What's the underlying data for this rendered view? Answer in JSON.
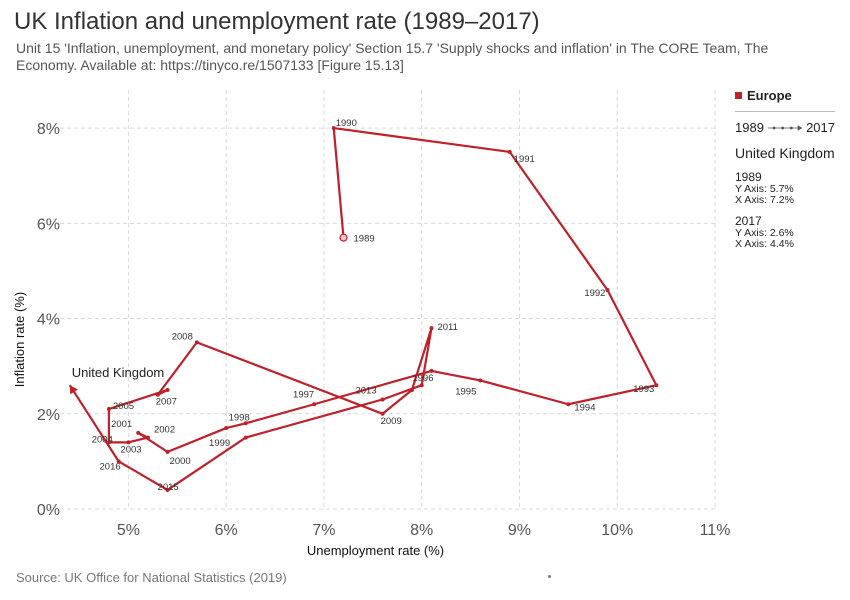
{
  "title": "UK Inflation and unemployment rate (1989–2017)",
  "subtitle": "Unit 15 'Inflation, unemployment, and monetary policy' Section 15.7 'Supply shocks and inflation' in The CORE Team, The Economy. Available at: https://tinyco.re/1507133 [Figure 15.13]",
  "source": "Source: UK Office for National Statistics (2019)",
  "colors": {
    "series": "#c0202a",
    "grid": "#d9d9d9",
    "axis_text": "#555555"
  },
  "legend": {
    "group": "Europe",
    "range_start": "1989",
    "range_end": "2017",
    "country": "United Kingdom",
    "first": {
      "year": "1989",
      "y_text": "Y Axis: 5.7%",
      "x_text": "X Axis: 7.2%"
    },
    "last": {
      "year": "2017",
      "y_text": "Y Axis: 2.6%",
      "x_text": "X Axis: 4.4%"
    }
  },
  "chart_data": {
    "type": "line",
    "xlabel": "Unemployment rate (%)",
    "ylabel": "Inflation rate (%)",
    "xlim": [
      4.3,
      11
    ],
    "ylim": [
      0,
      8.8
    ],
    "x_ticks": [
      "5%",
      "6%",
      "7%",
      "8%",
      "9%",
      "10%",
      "11%"
    ],
    "y_ticks": [
      "0%",
      "2%",
      "4%",
      "6%",
      "8%"
    ],
    "grid": true,
    "legend_position": "right",
    "series": [
      {
        "name": "United Kingdom",
        "points": [
          {
            "year": "1989",
            "x": 7.2,
            "y": 5.7
          },
          {
            "year": "1990",
            "x": 7.1,
            "y": 8.0
          },
          {
            "year": "1991",
            "x": 8.9,
            "y": 7.5
          },
          {
            "year": "1992",
            "x": 9.9,
            "y": 4.6
          },
          {
            "year": "1993",
            "x": 10.4,
            "y": 2.6
          },
          {
            "year": "1994",
            "x": 9.5,
            "y": 2.2
          },
          {
            "year": "1995",
            "x": 8.6,
            "y": 2.7
          },
          {
            "year": "1996",
            "x": 8.1,
            "y": 2.9
          },
          {
            "year": "1997",
            "x": 6.9,
            "y": 2.2
          },
          {
            "year": "1998",
            "x": 6.2,
            "y": 1.8
          },
          {
            "year": "1999",
            "x": 6.0,
            "y": 1.7
          },
          {
            "year": "2000",
            "x": 5.4,
            "y": 1.2
          },
          {
            "year": "2001",
            "x": 5.1,
            "y": 1.6
          },
          {
            "year": "2002",
            "x": 5.2,
            "y": 1.5
          },
          {
            "year": "2003",
            "x": 5.0,
            "y": 1.4
          },
          {
            "year": "2004",
            "x": 4.8,
            "y": 1.4
          },
          {
            "year": "2005",
            "x": 4.8,
            "y": 2.1
          },
          {
            "year": "2006",
            "x": 5.4,
            "y": 2.5
          },
          {
            "year": "2007",
            "x": 5.3,
            "y": 2.4
          },
          {
            "year": "2008",
            "x": 5.7,
            "y": 3.5
          },
          {
            "year": "2009",
            "x": 7.6,
            "y": 2.0
          },
          {
            "year": "2010",
            "x": 7.9,
            "y": 2.5
          },
          {
            "year": "2011",
            "x": 8.1,
            "y": 3.8
          },
          {
            "year": "2012",
            "x": 8.0,
            "y": 2.6
          },
          {
            "year": "2013",
            "x": 7.6,
            "y": 2.3
          },
          {
            "year": "2014",
            "x": 6.2,
            "y": 1.5
          },
          {
            "year": "2015",
            "x": 5.4,
            "y": 0.4
          },
          {
            "year": "2016",
            "x": 4.9,
            "y": 1.0
          },
          {
            "year": "2017",
            "x": 4.4,
            "y": 2.6
          }
        ],
        "labeled_years": [
          "1989",
          "1990",
          "1991",
          "1992",
          "1993",
          "1994",
          "1995",
          "1996",
          "1997",
          "1998",
          "1999",
          "2000",
          "2001",
          "2002",
          "2003",
          "2004",
          "2005",
          "2007",
          "2008",
          "2009",
          "2011",
          "2013",
          "2015",
          "2016"
        ],
        "end_label": "United Kingdom"
      }
    ]
  }
}
